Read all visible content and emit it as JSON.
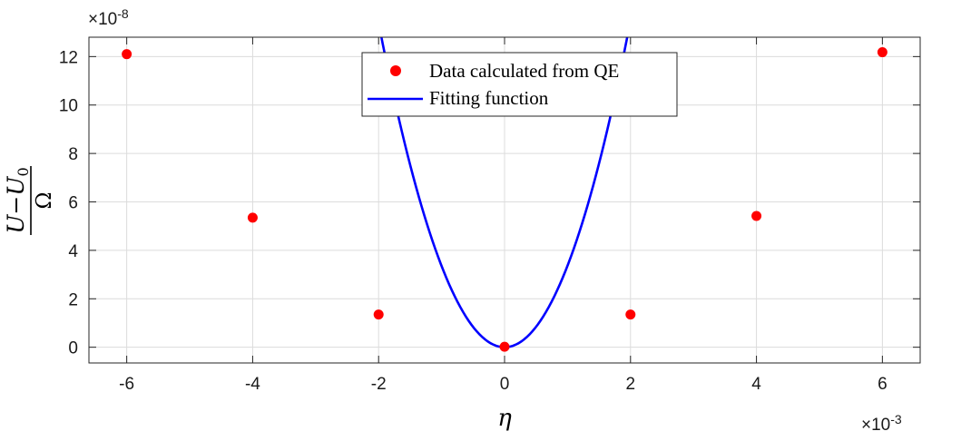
{
  "chart_data": {
    "type": "scatter",
    "x_multiplier": "×10",
    "x_multiplier_exp": "-3",
    "y_multiplier": "×10",
    "y_multiplier_exp": "-8",
    "xlim": [
      -6.6,
      6.6
    ],
    "ylim": [
      -0.65,
      12.8
    ],
    "xticks": [
      -6,
      -4,
      -2,
      0,
      2,
      4,
      6
    ],
    "yticks": [
      0,
      2,
      4,
      6,
      8,
      10,
      12
    ],
    "grid": true,
    "legend_position": "top-center",
    "xlabel": "η",
    "ylabel": {
      "num_a": "U",
      "num_op": "−",
      "num_b": "U",
      "num_b_sub": "0",
      "den": "Ω"
    },
    "series": [
      {
        "name": "Data calculated from QE",
        "kind": "scatter",
        "color": "#ff0000",
        "x": [
          -6,
          -4,
          -2,
          0,
          2,
          4,
          6
        ],
        "y": [
          12.1,
          5.35,
          1.35,
          0.02,
          1.35,
          5.42,
          12.18
        ]
      },
      {
        "name": "Fitting function",
        "kind": "line",
        "color": "#0000ff",
        "equation": "y = 3.36 x^2 + 0.007 x^3",
        "coef_a2": 3.36,
        "coef_a3": 0.007
      }
    ]
  }
}
